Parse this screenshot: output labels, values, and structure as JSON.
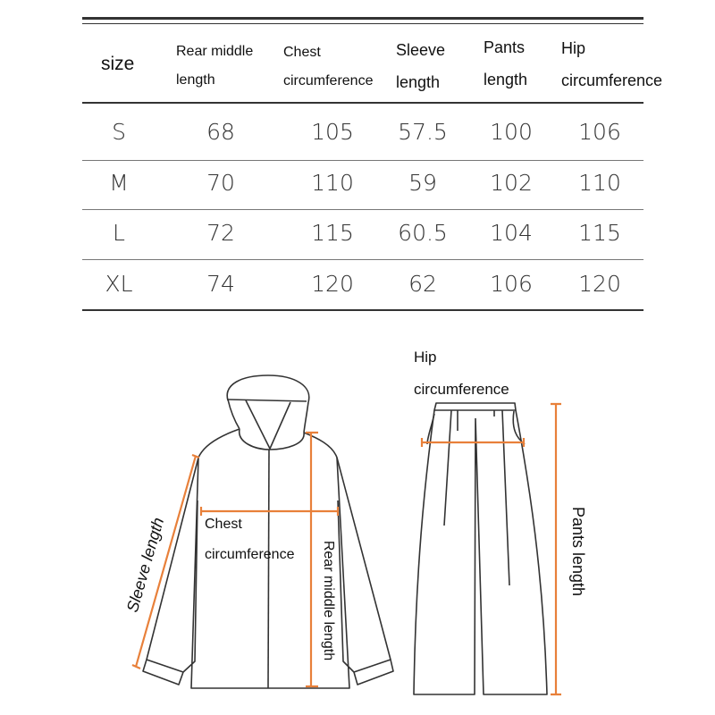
{
  "table": {
    "headers": [
      {
        "line1": "size",
        "line2": ""
      },
      {
        "line1": "Rear middle",
        "line2": "length"
      },
      {
        "line1": "Chest",
        "line2": "circumference"
      },
      {
        "line1": "Sleeve",
        "line2": "length"
      },
      {
        "line1": "Pants",
        "line2": "length"
      },
      {
        "line1": "Hip",
        "line2": "circumference"
      }
    ],
    "rows": [
      [
        "S",
        "68",
        "105",
        "57.5",
        "100",
        "106"
      ],
      [
        "M",
        "70",
        "110",
        "59",
        "102",
        "110"
      ],
      [
        "L",
        "72",
        "115",
        "60.5",
        "104",
        "115"
      ],
      [
        "XL",
        "74",
        "120",
        "62",
        "106",
        "120"
      ]
    ]
  },
  "diagram": {
    "accent_color": "#e8803a",
    "jacket": {
      "sleeve_label": "Sleeve length",
      "chest_label_line1": "Chest",
      "chest_label_line2": "circumference",
      "rear_label": "Rear middle length"
    },
    "pants": {
      "hip_label_line1": "Hip",
      "hip_label_line2": "circumference",
      "length_label": "Pants length"
    }
  }
}
